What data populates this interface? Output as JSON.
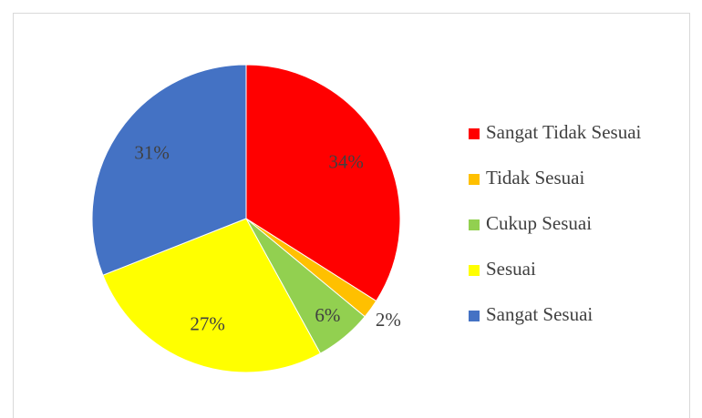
{
  "chart_data": {
    "type": "pie",
    "categories": [
      "Sangat Tidak Sesuai",
      "Tidak Sesuai",
      "Cukup Sesuai",
      "Sesuai",
      "Sangat Sesuai"
    ],
    "values": [
      34,
      2,
      6,
      27,
      31
    ],
    "value_labels": [
      "34%",
      "2%",
      "6%",
      "27%",
      "31%"
    ],
    "colors": [
      "#ff0000",
      "#ffc000",
      "#92d050",
      "#ffff00",
      "#4472c4"
    ],
    "legend": "right"
  }
}
